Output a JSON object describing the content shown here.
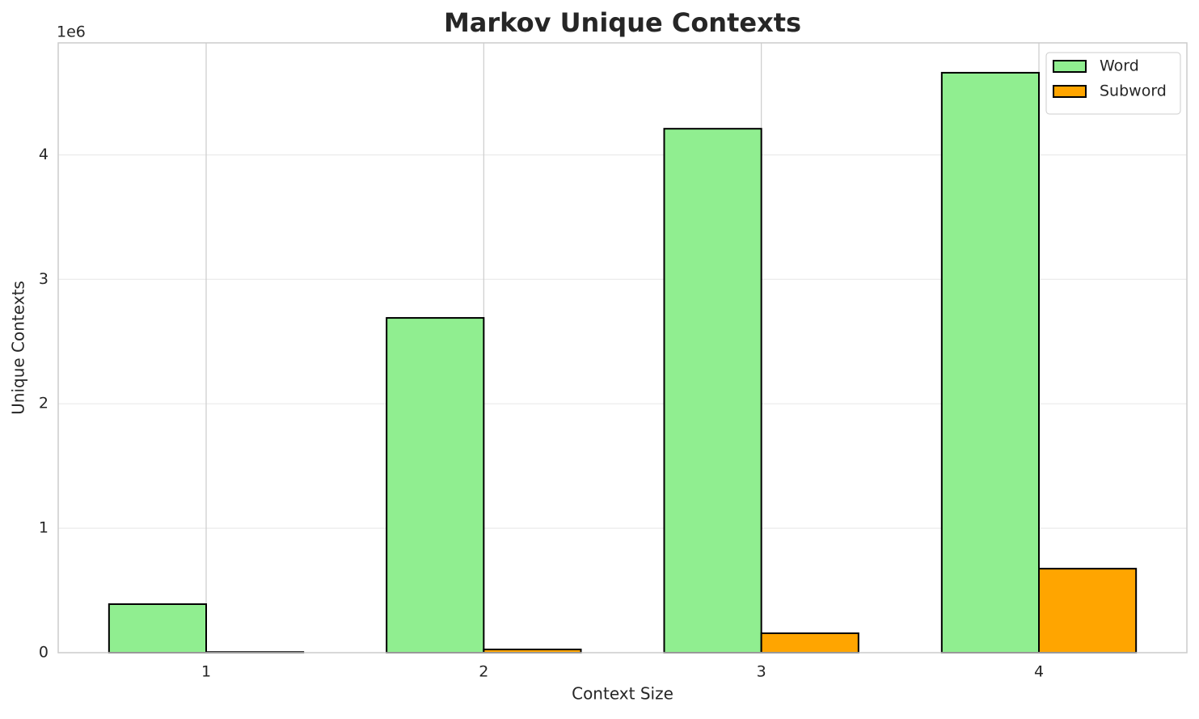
{
  "chart_data": {
    "type": "bar",
    "title": "Markov Unique Contexts",
    "x_label": "Context Size",
    "y_label": "Unique Contexts",
    "y_offset_label": "1e6",
    "categories": [
      "1",
      "2",
      "3",
      "4"
    ],
    "series": [
      {
        "name": "Word",
        "color": "#90ee90",
        "values": [
          390000,
          2690000,
          4210000,
          4660000
        ]
      },
      {
        "name": "Subword",
        "color": "#ffa500",
        "values": [
          5000,
          26000,
          156000,
          675000
        ]
      }
    ],
    "ylim": [
      0,
      4900000
    ],
    "yticks": [
      {
        "value": 0,
        "label": "0"
      },
      {
        "value": 1000000,
        "label": "1"
      },
      {
        "value": 2000000,
        "label": "2"
      },
      {
        "value": 3000000,
        "label": "3"
      },
      {
        "value": 4000000,
        "label": "4"
      }
    ],
    "grid": true,
    "legend": "upper right"
  }
}
